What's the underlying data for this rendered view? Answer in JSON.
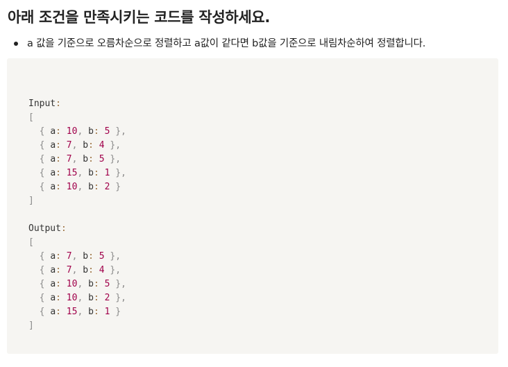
{
  "heading": "아래 조건을 만족시키는 코드를 작성하세요.",
  "bullets": [
    "a 값을 기준으로 오름차순으로 정렬하고 a값이 같다면 b값을 기준으로 내림차순하여 정렬합니다."
  ],
  "code": {
    "input_label": "Input",
    "output_label": "Output",
    "input": [
      {
        "a": 10,
        "b": 5
      },
      {
        "a": 7,
        "b": 4
      },
      {
        "a": 7,
        "b": 5
      },
      {
        "a": 15,
        "b": 1
      },
      {
        "a": 10,
        "b": 2
      }
    ],
    "output": [
      {
        "a": 7,
        "b": 5
      },
      {
        "a": 7,
        "b": 4
      },
      {
        "a": 10,
        "b": 5
      },
      {
        "a": 10,
        "b": 2
      },
      {
        "a": 15,
        "b": 1
      }
    ]
  }
}
